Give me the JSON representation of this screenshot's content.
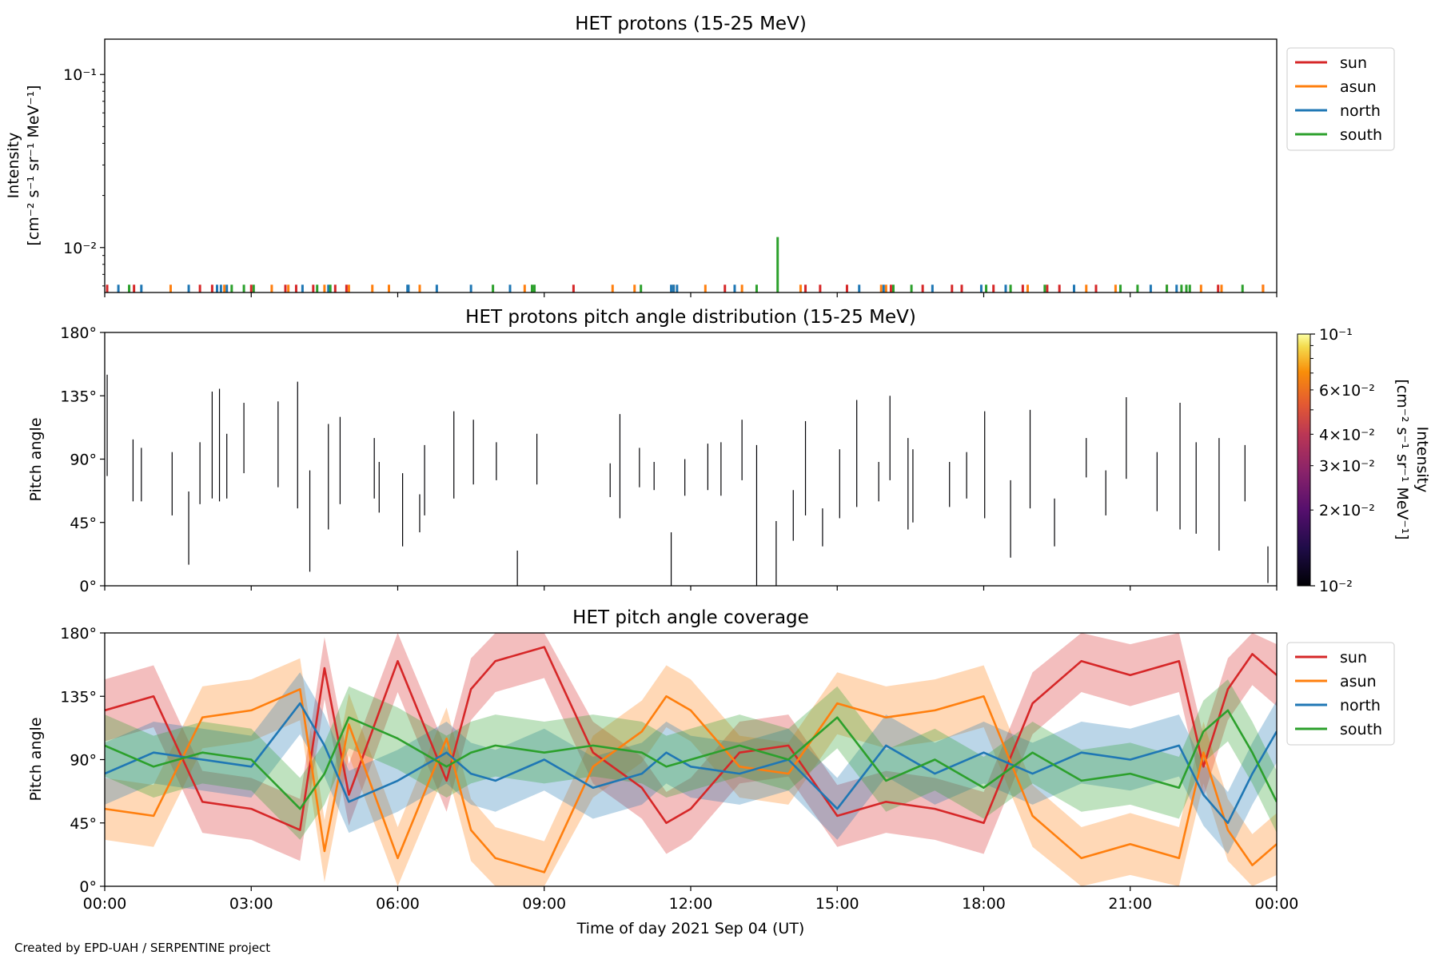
{
  "footer_credit": "Created by EPD-UAH / SERPENTINE project",
  "time_axis": {
    "xlabel": "Time of day 2021 Sep 04 (UT)",
    "tick_labels": [
      "00:00",
      "03:00",
      "06:00",
      "09:00",
      "12:00",
      "15:00",
      "18:00",
      "21:00",
      "00:00"
    ],
    "range_hours": [
      0,
      24
    ]
  },
  "colors": {
    "sun": "#d62728",
    "asun": "#ff7f0e",
    "north": "#1f77b4",
    "south": "#2ca02c"
  },
  "chart_data": [
    {
      "type": "bar",
      "title": "HET protons (15-25 MeV)",
      "ylabel_line1": "Intensity",
      "ylabel_line2": "[cm⁻² s⁻¹ sr⁻¹ MeV⁻¹]",
      "yscale": "log",
      "ylim": [
        0.0055,
        0.16
      ],
      "ytick_labels": [
        "10⁻²",
        "10⁻¹"
      ],
      "ytick_values": [
        0.01,
        0.1
      ],
      "legend": [
        "sun",
        "asun",
        "north",
        "south"
      ],
      "legend_position": "outside-top-right",
      "series": [
        {
          "name": "sun",
          "x_hours": [
            0.05,
            0.6,
            1.95,
            2.2,
            3.0,
            3.7,
            3.92,
            4.27,
            4.72,
            4.95,
            9.6,
            12.7,
            14.35,
            14.65,
            15.2,
            16.1,
            16.75,
            17.35,
            17.55,
            18.2,
            18.8,
            19.3,
            19.55,
            20.3,
            21.75,
            22.8,
            23.72
          ],
          "values": [
            0.0061,
            0.0061,
            0.0061,
            0.0061,
            0.0061,
            0.0061,
            0.0061,
            0.0061,
            0.0061,
            0.0061,
            0.0061,
            0.0061,
            0.0061,
            0.0061,
            0.0061,
            0.0061,
            0.0061,
            0.0061,
            0.0061,
            0.0061,
            0.0061,
            0.0061,
            0.0061,
            0.0061,
            0.0061,
            0.0061,
            0.0061
          ]
        },
        {
          "name": "asun",
          "x_hours": [
            1.35,
            2.45,
            3.42,
            3.76,
            4.5,
            5.0,
            5.48,
            5.82,
            6.45,
            8.6,
            10.4,
            10.85,
            11.65,
            12.3,
            13.05,
            14.25,
            15.9,
            16.0,
            18.9,
            20.1,
            20.7,
            22.45,
            22.87,
            23.72
          ],
          "values": [
            0.0061,
            0.0061,
            0.0061,
            0.0061,
            0.0061,
            0.0061,
            0.0061,
            0.0061,
            0.0061,
            0.0061,
            0.0061,
            0.0061,
            0.0061,
            0.0061,
            0.0061,
            0.0061,
            0.0061,
            0.0061,
            0.0061,
            0.0061,
            0.0061,
            0.0061,
            0.0061,
            0.0061
          ]
        },
        {
          "name": "north",
          "x_hours": [
            0.28,
            0.75,
            1.72,
            2.3,
            2.38,
            2.5,
            4.05,
            4.58,
            6.2,
            6.22,
            6.8,
            7.5,
            8.3,
            11.6,
            11.65,
            11.72,
            12.9,
            15.45,
            15.95,
            16.95,
            17.95,
            18.45,
            19.85,
            21.42,
            21.95
          ],
          "values": [
            0.0061,
            0.0061,
            0.0061,
            0.0061,
            0.0061,
            0.0061,
            0.0061,
            0.0061,
            0.0061,
            0.0061,
            0.0061,
            0.0061,
            0.0061,
            0.0061,
            0.0061,
            0.0061,
            0.0061,
            0.0061,
            0.0061,
            0.0061,
            0.0061,
            0.0061,
            0.0061,
            0.0061,
            0.0061
          ]
        },
        {
          "name": "south",
          "x_hours": [
            0.5,
            2.6,
            2.85,
            3.05,
            4.35,
            4.62,
            7.95,
            8.75,
            8.8,
            10.98,
            13.35,
            13.78,
            16.15,
            16.52,
            18.05,
            18.55,
            19.25,
            20.8,
            21.15,
            21.75,
            22.05,
            22.15,
            22.22,
            23.3
          ],
          "values": [
            0.0061,
            0.0061,
            0.0061,
            0.0061,
            0.0061,
            0.0061,
            0.0061,
            0.0061,
            0.0061,
            0.0061,
            0.0061,
            0.0115,
            0.0061,
            0.0061,
            0.0061,
            0.0061,
            0.0061,
            0.0061,
            0.0061,
            0.0061,
            0.0061,
            0.0061,
            0.0061,
            0.0061
          ]
        }
      ]
    },
    {
      "type": "heatmap",
      "title": "HET protons pitch angle distribution (15-25 MeV)",
      "ylabel": "Pitch angle",
      "ylim": [
        0,
        180
      ],
      "ytick_labels": [
        "0°",
        "45°",
        "90°",
        "135°",
        "180°"
      ],
      "ytick_values": [
        0,
        45,
        90,
        135,
        180
      ],
      "colorbar": {
        "label_line1": "Intensity",
        "label_line2": "[cm⁻² s⁻¹ sr⁻¹ MeV⁻¹]",
        "scale": "log",
        "range": [
          0.01,
          0.1
        ],
        "major_labels": [
          "10⁻²",
          "10⁻¹"
        ],
        "minor_labels": [
          "2×10⁻²",
          "3×10⁻²",
          "4×10⁻²",
          "6×10⁻²"
        ],
        "minor_values": [
          0.02,
          0.03,
          0.04,
          0.06
        ]
      },
      "segments_x_hours": [
        0.05,
        0.58,
        0.75,
        1.38,
        1.72,
        1.95,
        2.2,
        2.35,
        2.5,
        2.85,
        3.55,
        3.95,
        4.2,
        4.58,
        4.82,
        5.52,
        5.62,
        6.1,
        6.45,
        6.55,
        7.15,
        7.55,
        8.02,
        8.45,
        8.85,
        10.35,
        10.55,
        10.95,
        11.25,
        11.6,
        11.88,
        12.35,
        12.62,
        13.05,
        13.35,
        13.75,
        14.1,
        14.35,
        14.7,
        15.05,
        15.4,
        15.85,
        16.08,
        16.45,
        16.55,
        17.3,
        17.65,
        18.02,
        18.55,
        18.95,
        19.45,
        20.1,
        20.5,
        20.92,
        21.55,
        22.02,
        22.35,
        22.82,
        23.35,
        23.82
      ],
      "segments_y_range": [
        [
          78,
          150
        ],
        [
          60,
          104
        ],
        [
          60,
          98
        ],
        [
          50,
          95
        ],
        [
          15,
          67
        ],
        [
          58,
          102
        ],
        [
          62,
          138
        ],
        [
          60,
          140
        ],
        [
          62,
          108
        ],
        [
          80,
          130
        ],
        [
          70,
          131
        ],
        [
          55,
          145
        ],
        [
          10,
          82
        ],
        [
          40,
          115
        ],
        [
          58,
          120
        ],
        [
          62,
          105
        ],
        [
          52,
          88
        ],
        [
          28,
          80
        ],
        [
          38,
          65
        ],
        [
          50,
          100
        ],
        [
          62,
          124
        ],
        [
          72,
          118
        ],
        [
          75,
          102
        ],
        [
          0,
          25
        ],
        [
          72,
          108
        ],
        [
          63,
          87
        ],
        [
          48,
          122
        ],
        [
          70,
          98
        ],
        [
          68,
          88
        ],
        [
          0,
          38
        ],
        [
          64,
          90
        ],
        [
          68,
          101
        ],
        [
          64,
          102
        ],
        [
          75,
          118
        ],
        [
          0,
          100
        ],
        [
          0,
          46
        ],
        [
          32,
          68
        ],
        [
          50,
          117
        ],
        [
          28,
          55
        ],
        [
          48,
          97
        ],
        [
          56,
          132
        ],
        [
          60,
          88
        ],
        [
          75,
          135
        ],
        [
          40,
          105
        ],
        [
          45,
          97
        ],
        [
          56,
          88
        ],
        [
          62,
          95
        ],
        [
          48,
          124
        ],
        [
          20,
          75
        ],
        [
          55,
          125
        ],
        [
          28,
          62
        ],
        [
          77,
          105
        ],
        [
          50,
          82
        ],
        [
          76,
          134
        ],
        [
          53,
          95
        ],
        [
          40,
          130
        ],
        [
          37,
          102
        ],
        [
          25,
          105
        ],
        [
          60,
          100
        ],
        [
          2,
          28
        ]
      ],
      "note": "segments drawn as thin dark lines"
    },
    {
      "type": "line",
      "title": "HET pitch angle coverage",
      "ylabel": "Pitch angle",
      "ylim": [
        0,
        180
      ],
      "ytick_labels": [
        "0°",
        "45°",
        "90°",
        "135°",
        "180°"
      ],
      "ytick_values": [
        0,
        45,
        90,
        135,
        180
      ],
      "legend": [
        "sun",
        "asun",
        "north",
        "south"
      ],
      "legend_position": "outside-top-right",
      "shaded_band_halfwidth_deg": 22,
      "series": [
        {
          "name": "sun",
          "x_hours": [
            0,
            1,
            2,
            3,
            4,
            4.5,
            5,
            6,
            7,
            7.5,
            8,
            9,
            10,
            11,
            11.5,
            12,
            13,
            14,
            15,
            16,
            17,
            18,
            19,
            20,
            21,
            22,
            22.5,
            23,
            23.5,
            24
          ],
          "values": [
            125,
            135,
            60,
            55,
            40,
            155,
            65,
            160,
            75,
            140,
            160,
            170,
            95,
            70,
            45,
            55,
            95,
            100,
            50,
            60,
            55,
            45,
            130,
            160,
            150,
            160,
            85,
            140,
            165,
            150
          ]
        },
        {
          "name": "asun",
          "x_hours": [
            0,
            1,
            2,
            3,
            4,
            4.5,
            5,
            6,
            7,
            7.5,
            8,
            9,
            10,
            11,
            11.5,
            12,
            13,
            14,
            15,
            16,
            17,
            18,
            19,
            20,
            21,
            22,
            22.5,
            23,
            23.5,
            24
          ],
          "values": [
            55,
            50,
            120,
            125,
            140,
            25,
            115,
            20,
            105,
            40,
            20,
            10,
            85,
            110,
            135,
            125,
            85,
            80,
            130,
            120,
            125,
            135,
            50,
            20,
            30,
            20,
            95,
            40,
            15,
            30
          ]
        },
        {
          "name": "north",
          "x_hours": [
            0,
            1,
            2,
            3,
            4,
            4.5,
            5,
            6,
            7,
            7.5,
            8,
            9,
            10,
            11,
            11.5,
            12,
            13,
            14,
            15,
            16,
            17,
            18,
            19,
            20,
            21,
            22,
            22.5,
            23,
            23.5,
            24
          ],
          "values": [
            80,
            95,
            90,
            85,
            130,
            100,
            60,
            75,
            95,
            80,
            75,
            90,
            70,
            80,
            95,
            85,
            80,
            90,
            55,
            100,
            80,
            95,
            80,
            95,
            90,
            100,
            65,
            45,
            80,
            110
          ]
        },
        {
          "name": "south",
          "x_hours": [
            0,
            1,
            2,
            3,
            4,
            4.5,
            5,
            6,
            7,
            7.5,
            8,
            9,
            10,
            11,
            11.5,
            12,
            13,
            14,
            15,
            16,
            17,
            18,
            19,
            20,
            21,
            22,
            22.5,
            23,
            23.5,
            24
          ],
          "values": [
            100,
            85,
            95,
            90,
            55,
            80,
            120,
            105,
            85,
            95,
            100,
            95,
            100,
            95,
            85,
            90,
            100,
            90,
            120,
            75,
            90,
            70,
            95,
            75,
            80,
            70,
            110,
            125,
            95,
            60
          ]
        }
      ]
    }
  ]
}
